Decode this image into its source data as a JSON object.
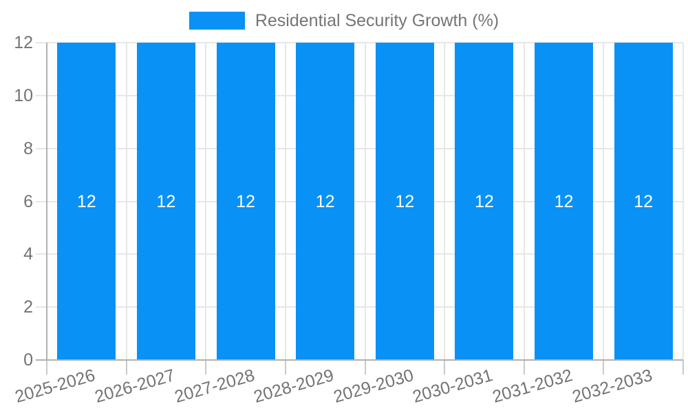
{
  "chart_data": {
    "type": "bar",
    "title": "",
    "xlabel": "",
    "ylabel": "",
    "legend_position": "top",
    "grid": true,
    "categories": [
      "2025-2026",
      "2026-2027",
      "2027-2028",
      "2028-2029",
      "2029-2030",
      "2030-2031",
      "2031-2032",
      "2032-2033"
    ],
    "series": [
      {
        "name": "Residential Security Growth (%)",
        "values": [
          12,
          12,
          12,
          12,
          12,
          12,
          12,
          12
        ],
        "color": "#0A91F5"
      }
    ],
    "bar_value_labels": [
      "12",
      "12",
      "12",
      "12",
      "12",
      "12",
      "12",
      "12"
    ],
    "ylim": [
      0,
      12
    ],
    "yticks": [
      0,
      2,
      4,
      6,
      8,
      10,
      12
    ],
    "colors": {
      "bar": "#0A91F5",
      "grid": "#e6e6e6",
      "axis_line": "#b0b0b0",
      "tick": "#c9c9c9",
      "axis_text": "#737373",
      "legend_text": "#757575",
      "bar_label": "#ffffff",
      "background": "#ffffff"
    }
  }
}
